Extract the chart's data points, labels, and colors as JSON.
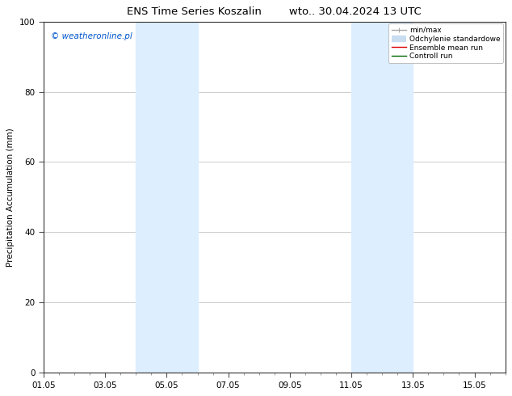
{
  "title_left": "ENS Time Series Koszalin",
  "title_right": "wto.. 30.04.2024 13 UTC",
  "ylabel": "Precipitation Accumulation (mm)",
  "watermark": "© weatheronline.pl",
  "watermark_color": "#0055cc",
  "ylim": [
    0,
    100
  ],
  "xlim_start": 0,
  "xlim_end": 15,
  "xtick_labels": [
    "01.05",
    "03.05",
    "05.05",
    "07.05",
    "09.05",
    "11.05",
    "13.05",
    "15.05"
  ],
  "xtick_positions": [
    0,
    2,
    4,
    6,
    8,
    10,
    12,
    14
  ],
  "ytick_positions": [
    0,
    20,
    40,
    60,
    80,
    100
  ],
  "shade_regions": [
    {
      "x_start": 3.0,
      "x_end": 5.0
    },
    {
      "x_start": 10.0,
      "x_end": 12.0
    }
  ],
  "shade_color": "#ddeeff",
  "background_color": "#ffffff",
  "legend_entries": [
    {
      "label": "min/max",
      "color": "#aaaaaa",
      "lw": 1.0,
      "style": "line_with_caps"
    },
    {
      "label": "Odchylenie standardowe",
      "color": "#c8ddf0",
      "lw": 6,
      "style": "thick_line"
    },
    {
      "label": "Ensemble mean run",
      "color": "#dd0000",
      "lw": 1.0,
      "style": "line"
    },
    {
      "label": "Controll run",
      "color": "#006600",
      "lw": 1.0,
      "style": "line"
    }
  ],
  "grid_color": "#bbbbbb",
  "title_fontsize": 9.5,
  "axis_label_fontsize": 7.5,
  "tick_fontsize": 7.5,
  "legend_fontsize": 6.5,
  "watermark_fontsize": 7.5
}
